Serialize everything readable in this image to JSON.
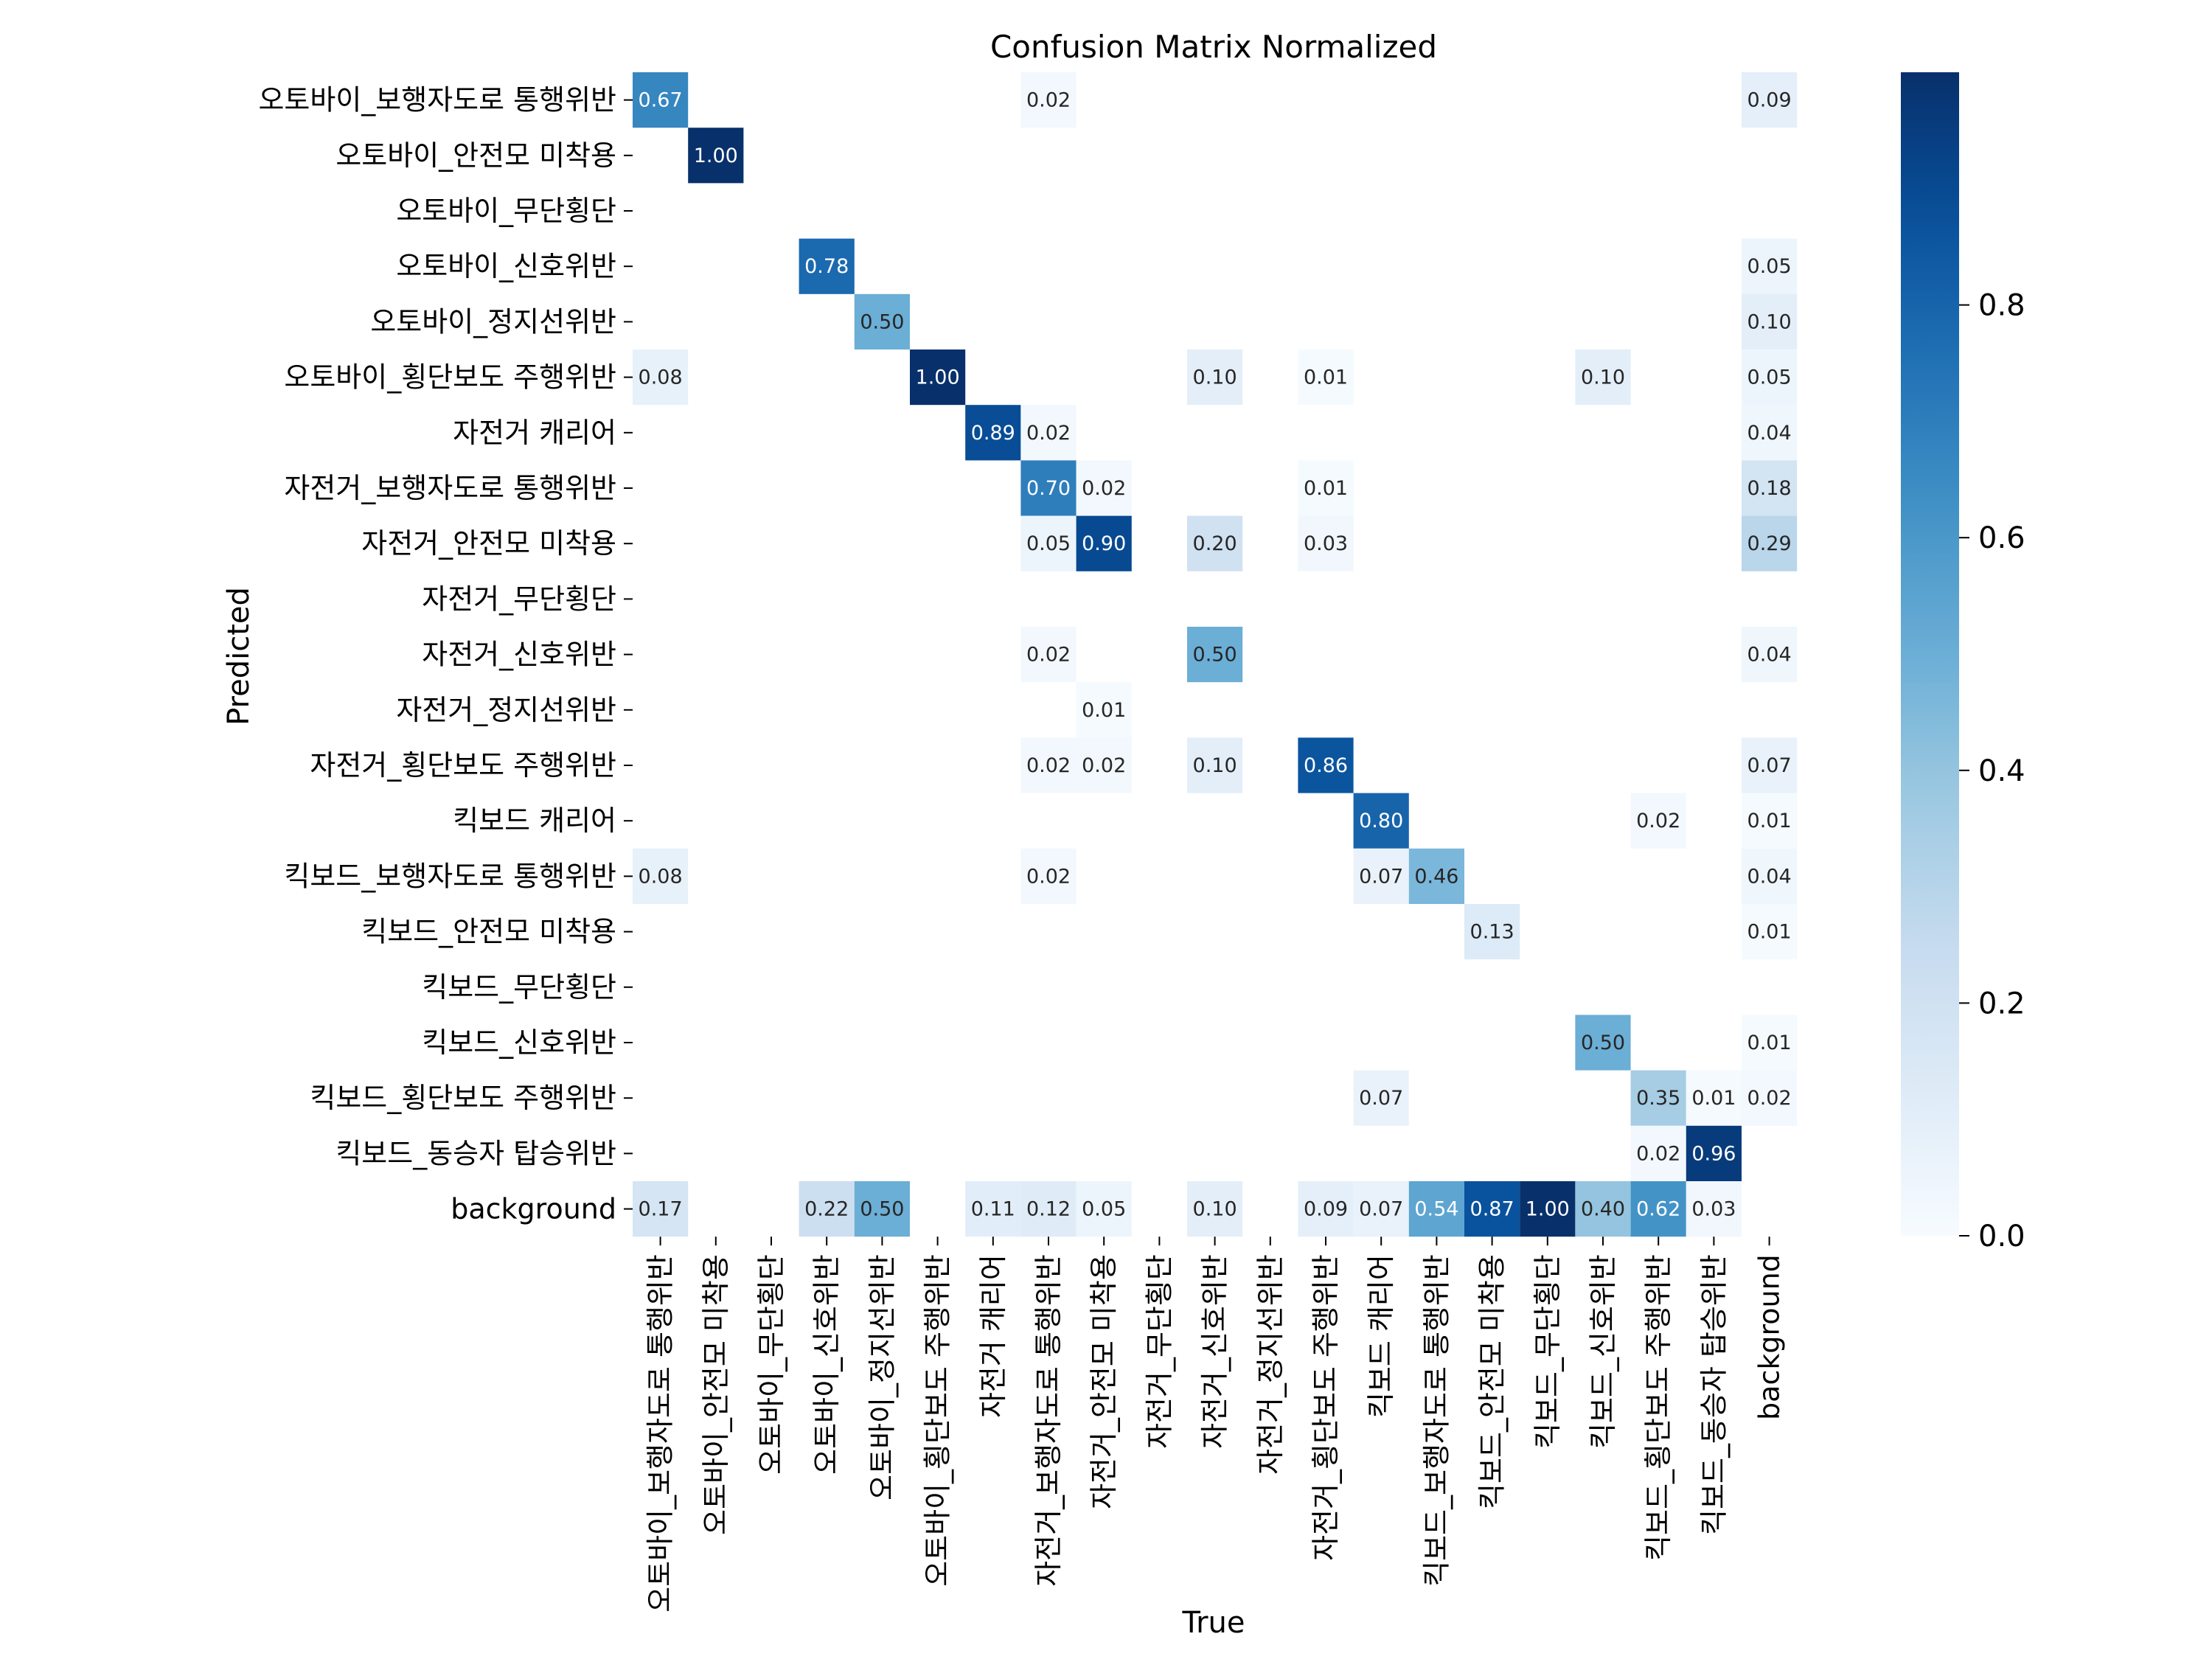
{
  "chart_data": {
    "type": "heatmap",
    "title": "Confusion Matrix Normalized",
    "xlabel": "True",
    "ylabel": "Predicted",
    "x_categories": [
      "오토바이_보행자도로 통행위반",
      "오토바이_안전모 미착용",
      "오토바이_무단횡단",
      "오토바이_신호위반",
      "오토바이_정지선위반",
      "오토바이_횡단보도 주행위반",
      "자전거 캐리어",
      "자전거_보행자도로 통행위반",
      "자전거_안전모 미착용",
      "자전거_무단횡단",
      "자전거_신호위반",
      "자전거_정지선위반",
      "자전거_횡단보도 주행위반",
      "킥보드 캐리어",
      "킥보드_보행자도로 통행위반",
      "킥보드_안전모 미착용",
      "킥보드_무단횡단",
      "킥보드_신호위반",
      "킥보드_횡단보도 주행위반",
      "킥보드_동승자 탑승위반",
      "background"
    ],
    "y_categories": [
      "오토바이_보행자도로 통행위반",
      "오토바이_안전모 미착용",
      "오토바이_무단횡단",
      "오토바이_신호위반",
      "오토바이_정지선위반",
      "오토바이_횡단보도 주행위반",
      "자전거 캐리어",
      "자전거_보행자도로 통행위반",
      "자전거_안전모 미착용",
      "자전거_무단횡단",
      "자전거_신호위반",
      "자전거_정지선위반",
      "자전거_횡단보도 주행위반",
      "킥보드 캐리어",
      "킥보드_보행자도로 통행위반",
      "킥보드_안전모 미착용",
      "킥보드_무단횡단",
      "킥보드_신호위반",
      "킥보드_횡단보도 주행위반",
      "킥보드_동승자 탑승위반",
      "background"
    ],
    "values": [
      [
        0.67,
        null,
        null,
        null,
        null,
        null,
        null,
        0.02,
        null,
        null,
        null,
        null,
        null,
        null,
        null,
        null,
        null,
        null,
        null,
        null,
        0.09
      ],
      [
        null,
        1.0,
        null,
        null,
        null,
        null,
        null,
        null,
        null,
        null,
        null,
        null,
        null,
        null,
        null,
        null,
        null,
        null,
        null,
        null,
        null
      ],
      [
        null,
        null,
        null,
        null,
        null,
        null,
        null,
        null,
        null,
        null,
        null,
        null,
        null,
        null,
        null,
        null,
        null,
        null,
        null,
        null,
        null
      ],
      [
        null,
        null,
        null,
        0.78,
        null,
        null,
        null,
        null,
        null,
        null,
        null,
        null,
        null,
        null,
        null,
        null,
        null,
        null,
        null,
        null,
        0.05
      ],
      [
        null,
        null,
        null,
        null,
        0.5,
        null,
        null,
        null,
        null,
        null,
        null,
        null,
        null,
        null,
        null,
        null,
        null,
        null,
        null,
        null,
        0.1
      ],
      [
        0.08,
        null,
        null,
        null,
        null,
        1.0,
        null,
        null,
        null,
        null,
        0.1,
        null,
        0.01,
        null,
        null,
        null,
        null,
        0.1,
        null,
        null,
        0.05
      ],
      [
        null,
        null,
        null,
        null,
        null,
        null,
        0.89,
        0.02,
        null,
        null,
        null,
        null,
        null,
        null,
        null,
        null,
        null,
        null,
        null,
        null,
        0.04
      ],
      [
        null,
        null,
        null,
        null,
        null,
        null,
        null,
        0.7,
        0.02,
        null,
        null,
        null,
        0.01,
        null,
        null,
        null,
        null,
        null,
        null,
        null,
        0.18
      ],
      [
        null,
        null,
        null,
        null,
        null,
        null,
        null,
        0.05,
        0.9,
        null,
        0.2,
        null,
        0.03,
        null,
        null,
        null,
        null,
        null,
        null,
        null,
        0.29
      ],
      [
        null,
        null,
        null,
        null,
        null,
        null,
        null,
        null,
        null,
        null,
        null,
        null,
        null,
        null,
        null,
        null,
        null,
        null,
        null,
        null,
        null
      ],
      [
        null,
        null,
        null,
        null,
        null,
        null,
        null,
        0.02,
        null,
        null,
        0.5,
        null,
        null,
        null,
        null,
        null,
        null,
        null,
        null,
        null,
        0.04
      ],
      [
        null,
        null,
        null,
        null,
        null,
        null,
        null,
        null,
        0.01,
        null,
        null,
        null,
        null,
        null,
        null,
        null,
        null,
        null,
        null,
        null,
        null
      ],
      [
        null,
        null,
        null,
        null,
        null,
        null,
        null,
        0.02,
        0.02,
        null,
        0.1,
        null,
        0.86,
        null,
        null,
        null,
        null,
        null,
        null,
        null,
        0.07
      ],
      [
        null,
        null,
        null,
        null,
        null,
        null,
        null,
        null,
        null,
        null,
        null,
        null,
        null,
        0.8,
        null,
        null,
        null,
        null,
        0.02,
        null,
        0.01
      ],
      [
        0.08,
        null,
        null,
        null,
        null,
        null,
        null,
        0.02,
        null,
        null,
        null,
        null,
        null,
        0.07,
        0.46,
        null,
        null,
        null,
        null,
        null,
        0.04
      ],
      [
        null,
        null,
        null,
        null,
        null,
        null,
        null,
        null,
        null,
        null,
        null,
        null,
        null,
        null,
        null,
        0.13,
        null,
        null,
        null,
        null,
        0.01
      ],
      [
        null,
        null,
        null,
        null,
        null,
        null,
        null,
        null,
        null,
        null,
        null,
        null,
        null,
        null,
        null,
        null,
        null,
        null,
        null,
        null,
        null
      ],
      [
        null,
        null,
        null,
        null,
        null,
        null,
        null,
        null,
        null,
        null,
        null,
        null,
        null,
        null,
        null,
        null,
        null,
        0.5,
        null,
        null,
        0.01
      ],
      [
        null,
        null,
        null,
        null,
        null,
        null,
        null,
        null,
        null,
        null,
        null,
        null,
        null,
        0.07,
        null,
        null,
        null,
        null,
        0.35,
        0.01,
        0.02
      ],
      [
        null,
        null,
        null,
        null,
        null,
        null,
        null,
        null,
        null,
        null,
        null,
        null,
        null,
        null,
        null,
        null,
        null,
        null,
        0.02,
        0.96,
        null
      ],
      [
        0.17,
        null,
        null,
        0.22,
        0.5,
        null,
        0.11,
        0.12,
        0.05,
        null,
        0.1,
        null,
        0.09,
        0.07,
        0.54,
        0.87,
        1.0,
        0.4,
        0.62,
        0.03,
        null
      ]
    ],
    "value_range": [
      0,
      1
    ],
    "colormap": "Blues",
    "colorbar": {
      "ticks": [
        0.0,
        0.2,
        0.4,
        0.6,
        0.8
      ],
      "tick_labels": [
        "0.0",
        "0.2",
        "0.4",
        "0.6",
        "0.8"
      ]
    },
    "colors": {
      "low": "#f7fbff",
      "high": "#08306b"
    }
  }
}
